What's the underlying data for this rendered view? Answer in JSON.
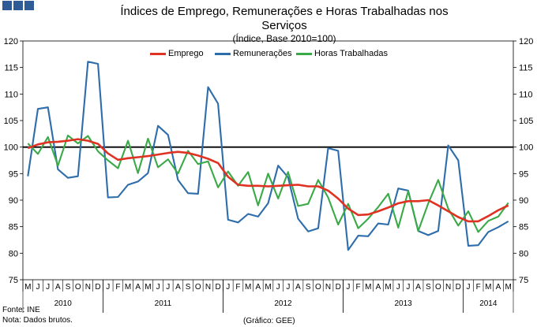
{
  "logo": {
    "color": "#2f5c96"
  },
  "header": {
    "title_line1": "Índices de Emprego, Remunerações e Horas Trabalhadas nos",
    "title_line2": "Serviços",
    "subtitle": "(Índice, Base 2010=100)"
  },
  "footer": {
    "source": "Fonte: INE",
    "note": "Nota: Dados brutos.",
    "credit": "(Gráfico: GEE)"
  },
  "chart_data": {
    "type": "line",
    "title": "Índices de Emprego, Remunerações e Horas Trabalhadas nos Serviços",
    "subtitle": "(Índice, Base 2010=100)",
    "ylim": [
      75,
      120
    ],
    "yticks": [
      75,
      80,
      85,
      90,
      95,
      100,
      105,
      110,
      115,
      120
    ],
    "reference_line": 100,
    "legend_position": "top-center",
    "x_month_labels": [
      "M",
      "J",
      "J",
      "A",
      "S",
      "O",
      "N",
      "D",
      "J",
      "F",
      "M",
      "A",
      "M",
      "J",
      "J",
      "A",
      "S",
      "O",
      "N",
      "D",
      "J",
      "F",
      "M",
      "A",
      "M",
      "J",
      "J",
      "A",
      "S",
      "O",
      "N",
      "D",
      "J",
      "F",
      "M",
      "A",
      "M",
      "J",
      "J",
      "A",
      "S",
      "O",
      "N",
      "D",
      "J",
      "F",
      "M",
      "A",
      "M"
    ],
    "x_year_groups": [
      {
        "label": "2010",
        "start": 0,
        "count": 8
      },
      {
        "label": "2011",
        "start": 8,
        "count": 12
      },
      {
        "label": "2012",
        "start": 20,
        "count": 12
      },
      {
        "label": "2013",
        "start": 32,
        "count": 12
      },
      {
        "label": "2014",
        "start": 44,
        "count": 5
      }
    ],
    "series": [
      {
        "name": "Emprego",
        "color": "#e03222",
        "values": [
          99.8,
          100.5,
          100.9,
          101.0,
          101.2,
          101.5,
          101.2,
          100.6,
          98.8,
          97.6,
          97.9,
          98.1,
          98.3,
          98.6,
          98.9,
          99.1,
          98.9,
          98.4,
          97.8,
          97.0,
          94.4,
          92.9,
          92.7,
          92.7,
          92.6,
          92.7,
          92.8,
          92.9,
          92.6,
          92.6,
          91.8,
          90.3,
          88.4,
          87.2,
          87.3,
          87.9,
          88.6,
          89.4,
          89.8,
          89.8,
          90.0,
          89.0,
          87.9,
          86.8,
          86.0,
          86.0,
          87.0,
          88.1,
          89.0
        ]
      },
      {
        "name": "Remunerações",
        "color": "#2e6dab",
        "values": [
          94.5,
          107.2,
          107.5,
          95.8,
          94.2,
          94.5,
          116.1,
          115.7,
          90.5,
          90.6,
          92.9,
          93.5,
          95.1,
          104.0,
          102.3,
          93.8,
          91.3,
          91.2,
          111.3,
          108.2,
          86.3,
          85.8,
          87.4,
          86.9,
          89.4,
          96.5,
          94.3,
          86.5,
          84.1,
          84.7,
          99.8,
          99.3,
          80.6,
          83.3,
          83.2,
          85.6,
          85.4,
          92.2,
          91.8,
          84.2,
          83.4,
          84.2,
          100.3,
          97.5,
          81.4,
          81.5,
          84.0,
          84.9,
          86.0
        ]
      },
      {
        "name": "Horas Trabalhadas",
        "color": "#3aaa48",
        "values": [
          100.7,
          98.7,
          101.9,
          96.5,
          102.2,
          100.7,
          102.1,
          99.2,
          97.5,
          96.0,
          101.2,
          95.1,
          101.6,
          96.2,
          97.7,
          95.0,
          99.3,
          96.8,
          97.3,
          92.4,
          95.4,
          92.7,
          95.3,
          89.0,
          95.0,
          90.3,
          95.3,
          88.9,
          89.3,
          93.8,
          90.5,
          85.4,
          89.3,
          84.7,
          86.5,
          88.7,
          91.2,
          84.8,
          91.7,
          84.2,
          89.4,
          93.8,
          88.4,
          85.2,
          87.9,
          84.0,
          86.1,
          86.9,
          89.5
        ]
      }
    ]
  }
}
